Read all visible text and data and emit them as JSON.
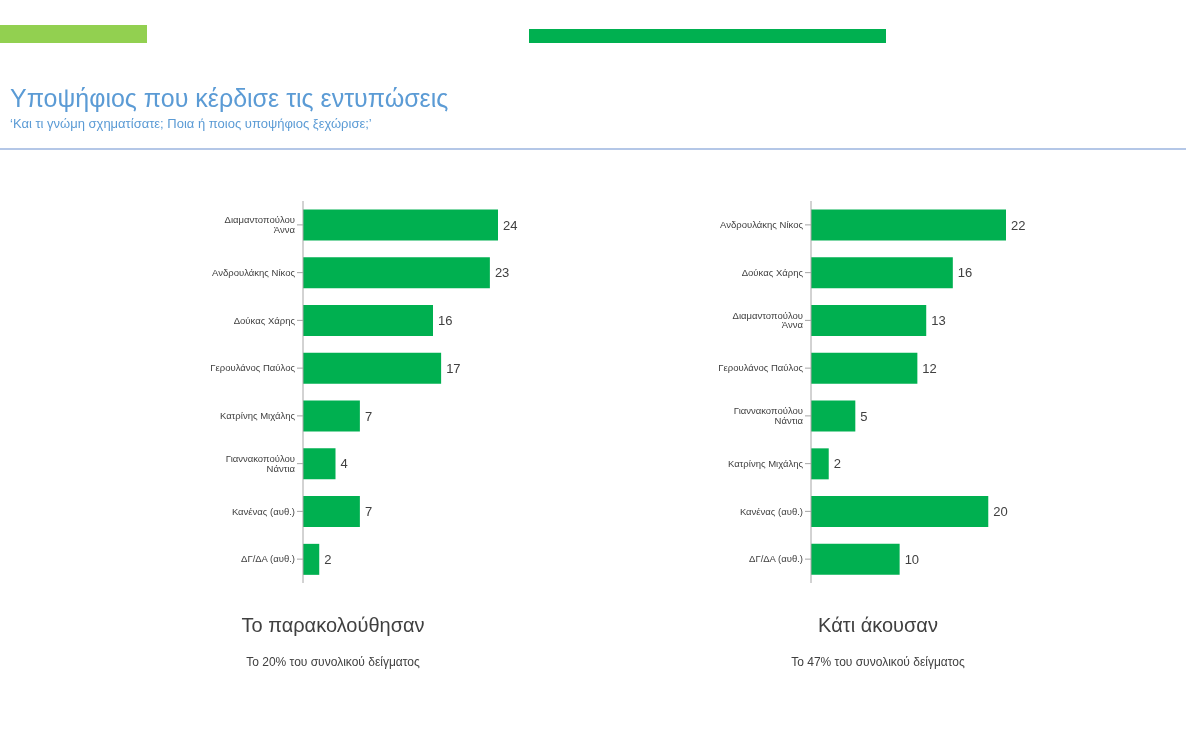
{
  "chart_data": [
    {
      "type": "bar",
      "orientation": "horizontal",
      "title": "Υποψήφιος που κέρδισε τις εντυπώσεις",
      "subtitle": "‘Και τι γνώμη σχηματίσατε; Ποια ή ποιος υποψήφιος ξεχώρισε;’",
      "xlabel": "Το παρακολούθησαν",
      "annotations": [
        "Το 20% του συνολικού δείγματος"
      ],
      "categories": [
        "Διαμαντοπούλου Άννα",
        "Ανδρουλάκης Νίκος",
        "Δούκας Χάρης",
        "Γερουλάνος Παύλος",
        "Κατρίνης Μιχάλης",
        "Γιαννακοπούλου Νάντια",
        "Κανένας (αυθ.)",
        "ΔΓ/ΔΑ (αυθ.)"
      ],
      "values": [
        24,
        23,
        16,
        17,
        7,
        4,
        7,
        2
      ],
      "color": "#00b050",
      "data_labels": true
    },
    {
      "type": "bar",
      "orientation": "horizontal",
      "xlabel": "Κάτι άκουσαν",
      "annotations": [
        "Το 47% του συνολικού δείγματος"
      ],
      "categories": [
        "Ανδρουλάκης Νίκος",
        "Δούκας Χάρης",
        "Διαμαντοπούλου Άννα",
        "Γερουλάνος Παύλος",
        "Γιαννακοπούλου Νάντια",
        "Κατρίνης Μιχάλης",
        "Κανένας (αυθ.)",
        "ΔΓ/ΔΑ (αυθ.)"
      ],
      "values": [
        22,
        16,
        13,
        12,
        5,
        2,
        20,
        10
      ],
      "color": "#00b050",
      "data_labels": true
    }
  ]
}
